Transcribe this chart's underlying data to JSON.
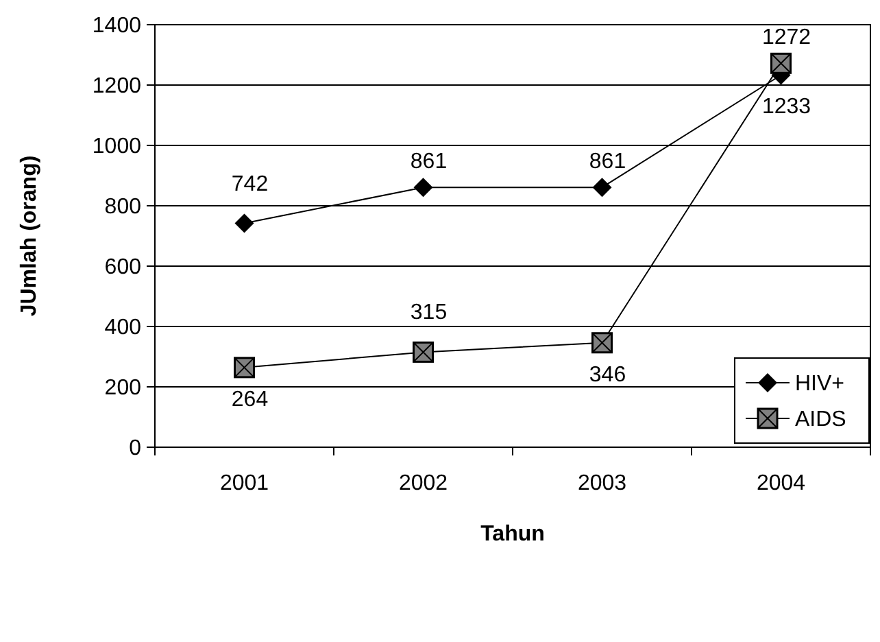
{
  "chart_data": {
    "type": "line",
    "xlabel": "Tahun",
    "ylabel": "JUmlah (orang)",
    "categories": [
      "2001",
      "2002",
      "2003",
      "2004"
    ],
    "series": [
      {
        "name": "HIV+",
        "color": "#000000",
        "marker": "diamond",
        "values": [
          742,
          861,
          861,
          1233
        ]
      },
      {
        "name": "AIDS",
        "color": "#000000",
        "marker": "square",
        "values": [
          264,
          315,
          346,
          1272
        ]
      }
    ],
    "ylim": [
      0,
      1400
    ],
    "yticks": [
      0,
      200,
      400,
      600,
      800,
      1000,
      1200,
      1400
    ],
    "grid": "y",
    "legend": "bottom right",
    "data_labels": true
  }
}
